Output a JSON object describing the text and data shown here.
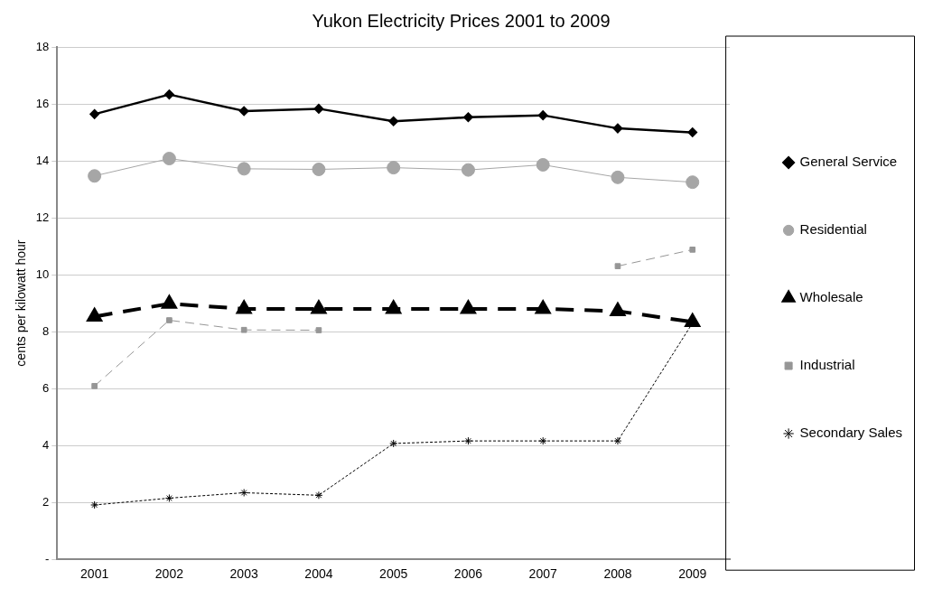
{
  "chart_data": {
    "type": "line",
    "title": "Yukon Electricity Prices 2001 to 2009",
    "ylabel": "cents per kilowatt hour",
    "categories": [
      "2001",
      "2002",
      "2003",
      "2004",
      "2005",
      "2006",
      "2007",
      "2008",
      "2009"
    ],
    "series": [
      {
        "name": "General Service",
        "color": "#000000",
        "marker": "diamond",
        "line_style": "solid",
        "values": [
          15.64,
          16.33,
          15.75,
          15.83,
          15.39,
          15.53,
          15.6,
          15.14,
          15.0
        ]
      },
      {
        "name": "Residential",
        "color": "#a6a6a6",
        "marker": "circle",
        "line_style": "solid",
        "values": [
          13.47,
          14.08,
          13.72,
          13.7,
          13.76,
          13.68,
          13.86,
          13.42,
          13.25
        ]
      },
      {
        "name": "Wholesale",
        "color": "#000000",
        "marker": "triangle",
        "line_style": "dashed",
        "values": [
          8.53,
          8.98,
          8.8,
          8.8,
          8.8,
          8.8,
          8.8,
          8.72,
          8.34
        ]
      },
      {
        "name": "Industrial",
        "color": "#969696",
        "marker": "square",
        "line_style": "dashed",
        "values": [
          6.09,
          8.4,
          8.06,
          8.05,
          null,
          null,
          null,
          10.3,
          10.88
        ]
      },
      {
        "name": "Secondary Sales",
        "color": "#000000",
        "marker": "cross",
        "line_style": "dotted",
        "values": [
          1.91,
          2.15,
          2.34,
          2.25,
          4.07,
          4.16,
          4.16,
          4.16,
          8.3
        ]
      }
    ],
    "ylim": [
      0,
      18
    ],
    "yticks": [
      {
        "value": 0,
        "label": "-"
      },
      2,
      4,
      6,
      8,
      10,
      12,
      14,
      16,
      18
    ],
    "grid": "y",
    "legend": "right"
  }
}
